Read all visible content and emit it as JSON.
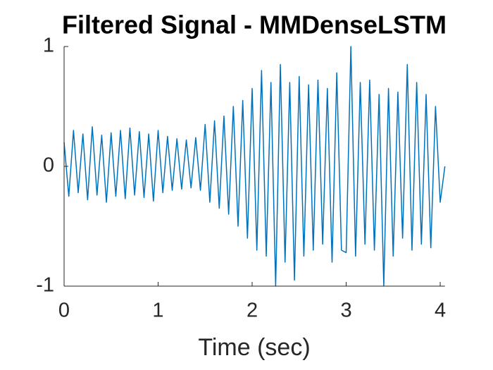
{
  "chart_data": {
    "type": "line",
    "title": "Filtered Signal - MMDenseLSTM",
    "xlabel": "Time (sec)",
    "x": [
      0,
      0.05,
      0.1,
      0.15,
      0.2,
      0.25,
      0.3,
      0.35,
      0.4,
      0.45,
      0.5,
      0.55,
      0.6,
      0.65,
      0.7,
      0.75,
      0.8,
      0.85,
      0.9,
      0.95,
      1.0,
      1.05,
      1.1,
      1.15,
      1.2,
      1.25,
      1.3,
      1.35,
      1.4,
      1.45,
      1.5,
      1.55,
      1.6,
      1.65,
      1.7,
      1.75,
      1.8,
      1.85,
      1.9,
      1.95,
      2.0,
      2.05,
      2.1,
      2.15,
      2.2,
      2.25,
      2.3,
      2.35,
      2.4,
      2.45,
      2.5,
      2.55,
      2.6,
      2.65,
      2.7,
      2.75,
      2.8,
      2.85,
      2.9,
      2.95,
      3.0,
      3.05,
      3.1,
      3.15,
      3.2,
      3.25,
      3.3,
      3.35,
      3.4,
      3.45,
      3.5,
      3.55,
      3.6,
      3.65,
      3.7,
      3.75,
      3.8,
      3.85,
      3.9,
      3.95,
      4.0,
      4.05
    ],
    "series": [
      {
        "color": "#0072bd",
        "values": [
          0.2,
          -0.25,
          0.3,
          -0.22,
          0.27,
          -0.28,
          0.33,
          -0.24,
          0.26,
          -0.3,
          0.28,
          -0.25,
          0.3,
          -0.27,
          0.32,
          -0.24,
          0.29,
          -0.26,
          0.27,
          -0.29,
          0.3,
          -0.22,
          0.25,
          -0.2,
          0.23,
          -0.19,
          0.22,
          -0.18,
          0.24,
          -0.2,
          0.35,
          -0.3,
          0.38,
          -0.35,
          0.42,
          -0.4,
          0.5,
          -0.5,
          0.55,
          -0.6,
          0.65,
          -0.7,
          0.8,
          -0.75,
          0.7,
          -1.0,
          0.85,
          -0.8,
          0.7,
          -0.95,
          0.75,
          -0.75,
          0.68,
          -0.7,
          0.72,
          -0.65,
          0.65,
          -0.8,
          0.78,
          -0.7,
          -0.72,
          1.0,
          -0.75,
          0.7,
          -0.65,
          0.72,
          -0.7,
          0.6,
          -1.0,
          0.65,
          -0.75,
          0.62,
          -0.6,
          0.85,
          -0.7,
          0.7,
          -0.65,
          0.6,
          -0.68,
          0.5,
          -0.3,
          0.0
        ]
      }
    ],
    "xlim": [
      0,
      4.05
    ],
    "ylim": [
      -1,
      1
    ],
    "xticks": [
      0,
      1,
      2,
      3,
      4
    ],
    "yticks": [
      -1,
      0,
      1
    ]
  }
}
